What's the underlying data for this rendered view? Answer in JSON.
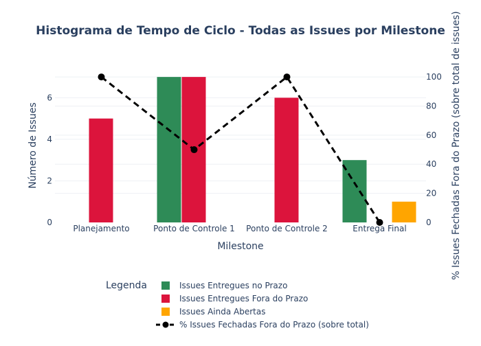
{
  "chart_data": {
    "type": "bar",
    "title": "Histograma de Tempo de Ciclo - Todas as Issues por Milestone",
    "xlabel": "Milestone",
    "ylabel": "Número de Issues",
    "y2label": "% Issues Fechadas Fora do Prazo (sobre total de issues)",
    "categories": [
      "Planejamento",
      "Ponto de Controle 1",
      "Ponto de Controle 2",
      "Entrega Final"
    ],
    "ylim": [
      0,
      7.4
    ],
    "yticks": [
      0,
      2,
      4,
      6
    ],
    "y2lim": [
      0,
      105.7
    ],
    "y2ticks": [
      0,
      20,
      40,
      60,
      80,
      100
    ],
    "grid": true,
    "legend_title": "Legenda",
    "legend_position": "bottom",
    "series": [
      {
        "name": "Issues Entregues no Prazo",
        "type": "bar",
        "axis": "y",
        "color": "#2e8b57",
        "values": [
          0,
          7,
          0,
          3
        ]
      },
      {
        "name": "Issues Entregues Fora do Prazo",
        "type": "bar",
        "axis": "y",
        "color": "#dc143c",
        "values": [
          5,
          7,
          6,
          0
        ]
      },
      {
        "name": "Issues Ainda Abertas",
        "type": "bar",
        "axis": "y",
        "color": "#ffa500",
        "values": [
          0,
          0,
          0,
          1
        ]
      },
      {
        "name": "% Issues Fechadas Fora do Prazo (sobre total)",
        "type": "line",
        "axis": "y2",
        "color": "#000000",
        "dash": "dashed",
        "values": [
          100,
          50,
          100,
          0
        ]
      }
    ]
  }
}
